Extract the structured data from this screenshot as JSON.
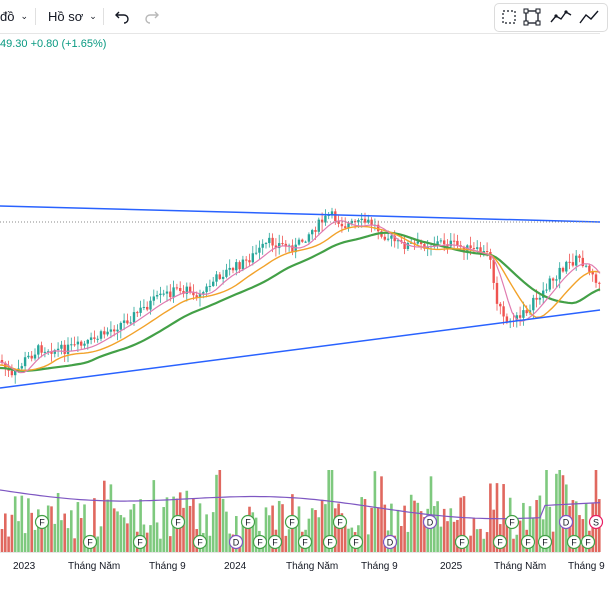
{
  "toolbar": {
    "chart_type_label": "đồ",
    "template_label": "Hồ sơ",
    "undo_icon": "undo-icon",
    "redo_icon": "redo-icon",
    "drawing_tools": [
      "dotted-square-icon",
      "rectangle-icon",
      "line-chart-icon",
      "trend-icon"
    ]
  },
  "price_readout": "49.30 +0.80 (+1.65%)",
  "x_axis": {
    "labels": [
      "2023",
      "Tháng Năm",
      "Tháng 9",
      "2024",
      "Tháng Năm",
      "Tháng 9",
      "2025",
      "Tháng Năm",
      "Tháng 9"
    ]
  },
  "event_markers": [
    "F",
    "F",
    "F",
    "F",
    "F",
    "D",
    "F",
    "F",
    "F",
    "F",
    "F",
    "F",
    "F",
    "F",
    "D",
    "D",
    "F",
    "F",
    "F",
    "F",
    "F",
    "D",
    "F",
    "F",
    "S"
  ],
  "colors": {
    "up": "#26a69a",
    "down": "#ef5350",
    "trendline": "#2962ff",
    "ma_green": "#43a047",
    "ma_orange": "#f2a22a",
    "ma_pink": "#e07bb0",
    "volume_line": "#7e57c2",
    "positive_text": "#089981"
  }
}
